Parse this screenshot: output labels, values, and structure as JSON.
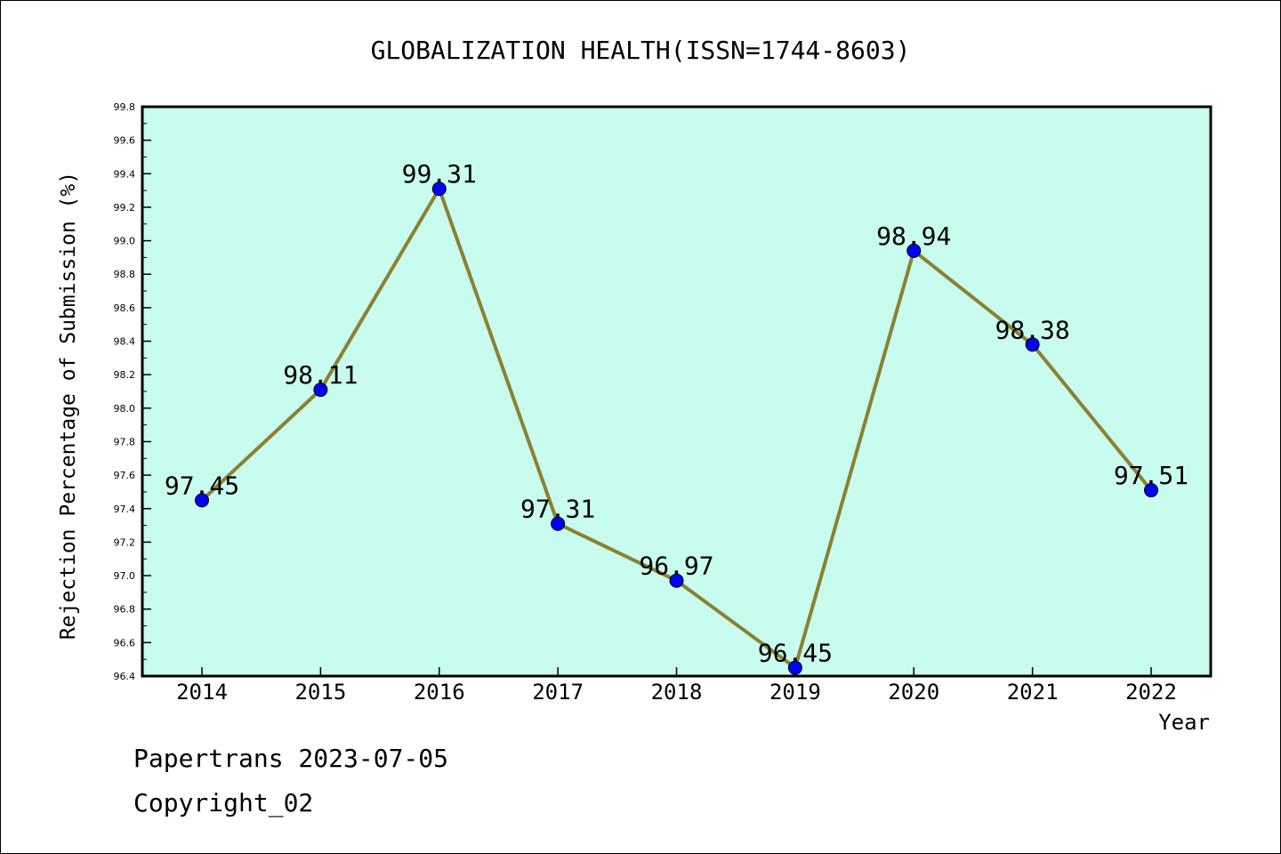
{
  "chart_data": {
    "type": "line",
    "title": "GLOBALIZATION HEALTH(ISSN=1744-8603)",
    "xlabel": "Year",
    "ylabel": "Rejection Percentage of Submission (%)",
    "categories": [
      "2014",
      "2015",
      "2016",
      "2017",
      "2018",
      "2019",
      "2020",
      "2021",
      "2022"
    ],
    "values": [
      97.45,
      98.11,
      99.31,
      97.31,
      96.97,
      96.45,
      98.94,
      98.38,
      97.51
    ],
    "data_labels": [
      "97.45",
      "98.11",
      "99.31",
      "97.31",
      "96.97",
      "96.45",
      "98.94",
      "98.38",
      "97.51"
    ],
    "ylim": [
      96.4,
      99.8
    ],
    "yticks": [
      "96.4",
      "96.6",
      "96.8",
      "97.0",
      "97.2",
      "97.4",
      "97.6",
      "97.8",
      "98.0",
      "98.2",
      "98.4",
      "98.6",
      "98.8",
      "99.0",
      "99.2",
      "99.4",
      "99.6",
      "99.8"
    ],
    "colors": {
      "plot_background": "#c8fcee",
      "line": "#8b8130",
      "marker": "#0000ff"
    }
  },
  "footer": {
    "line1": "Papertrans 2023-07-05",
    "line2": "Copyright_02"
  }
}
